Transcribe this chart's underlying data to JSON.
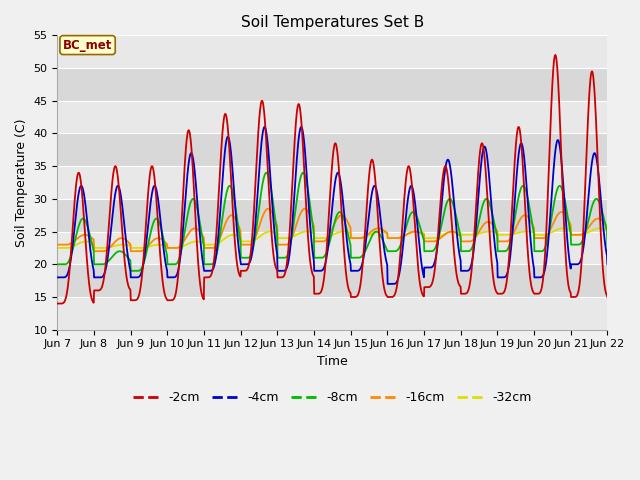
{
  "title": "Soil Temperatures Set B",
  "xlabel": "Time",
  "ylabel": "Soil Temperature (C)",
  "ylim": [
    10,
    55
  ],
  "annotation": "BC_met",
  "series_colors": {
    "-2cm": "#cc0000",
    "-4cm": "#0000cc",
    "-8cm": "#00bb00",
    "-16cm": "#ff8800",
    "-32cm": "#dddd00"
  },
  "x_tick_labels": [
    "Jun 7",
    "Jun 8",
    "Jun 9",
    "Jun 10",
    "Jun 11",
    "Jun 12",
    "Jun 13",
    "Jun 14",
    "Jun 15",
    "Jun 16",
    "Jun 17",
    "Jun 18",
    "Jun 19",
    "Jun 20",
    "Jun 21",
    "Jun 22"
  ],
  "yticks": [
    10,
    15,
    20,
    25,
    30,
    35,
    40,
    45,
    50,
    55
  ],
  "fig_bg_color": "#f0f0f0",
  "plot_bg_bands": [
    "#e8e8e8",
    "#d8d8d8"
  ],
  "grid_color": "#ffffff"
}
